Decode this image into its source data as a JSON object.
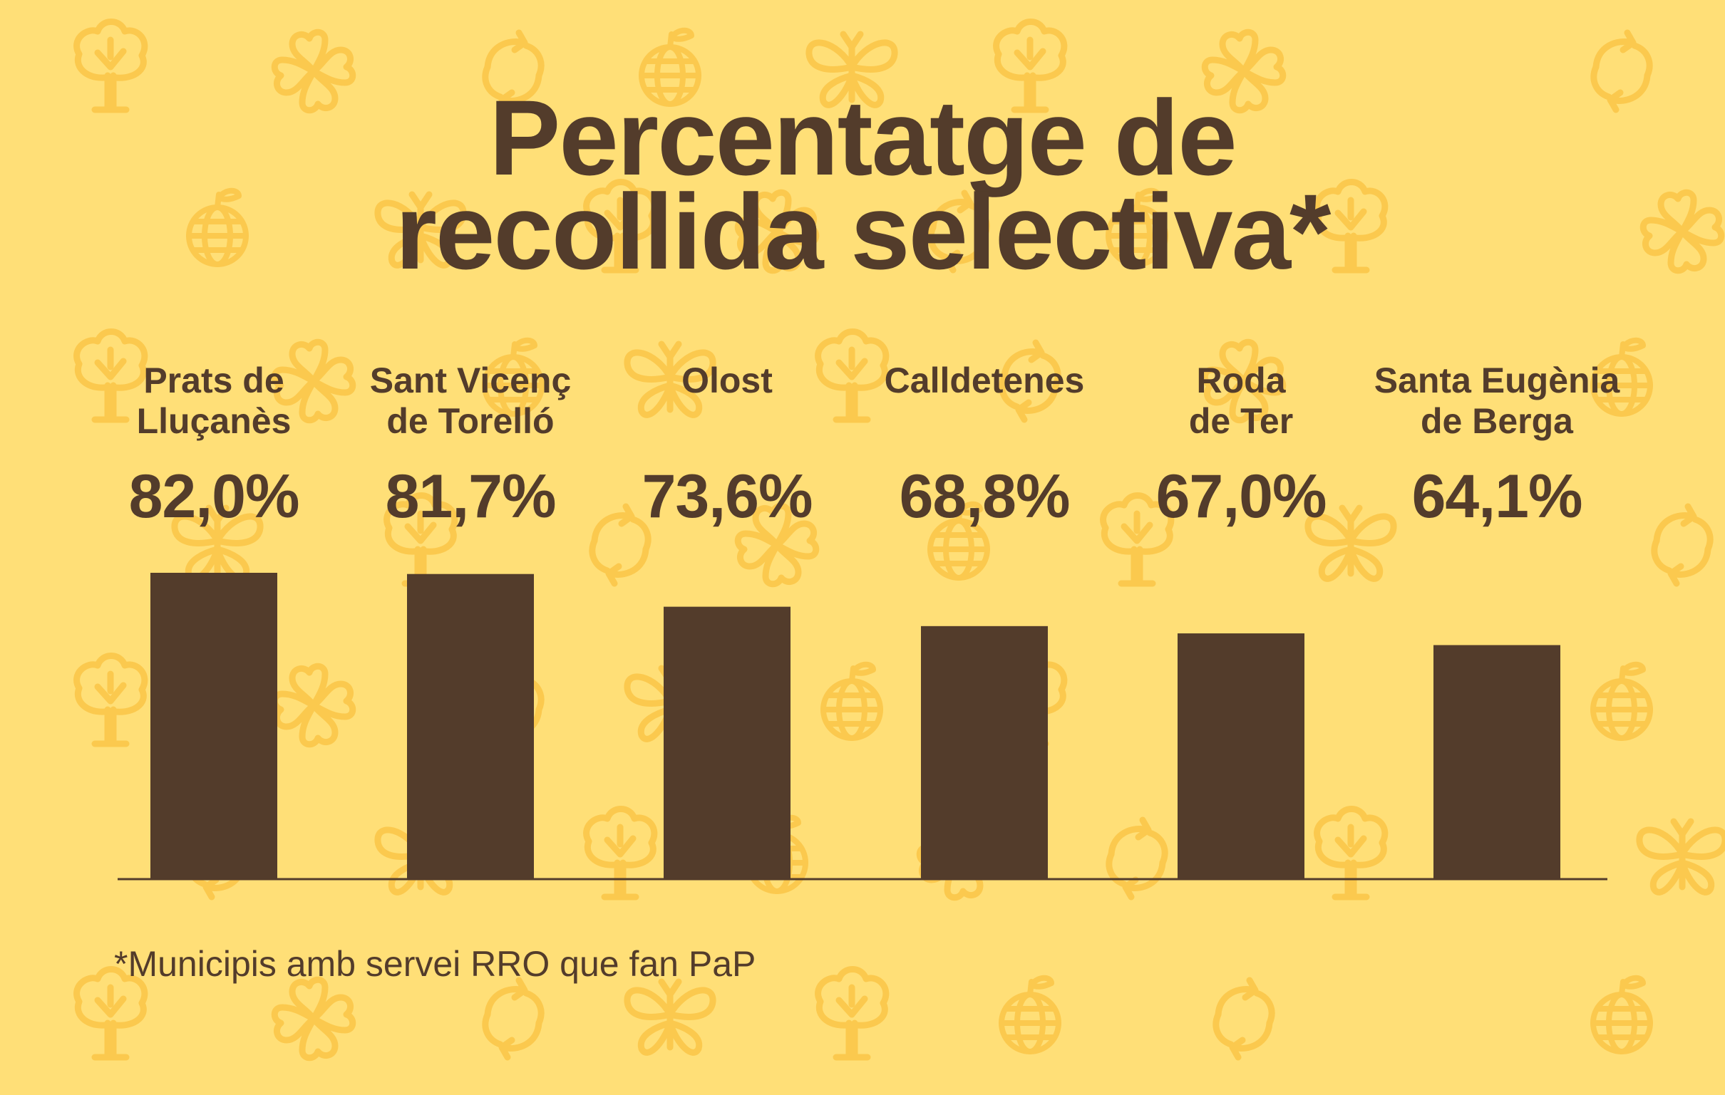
{
  "colors": {
    "background": "#ffdf77",
    "pattern": "#fbc94e",
    "ink": "#533c2b"
  },
  "header": {
    "title_line1": "Percentatge de",
    "title_line2": "recollida selectiva*"
  },
  "chart_data": {
    "type": "bar",
    "categories": [
      [
        "Prats de",
        "Lluçanès"
      ],
      [
        "Sant Vicenç",
        "de Torelló"
      ],
      [
        "Olost",
        ""
      ],
      [
        "Calldetenes",
        ""
      ],
      [
        "Roda",
        "de Ter"
      ],
      [
        "Santa Eugènia",
        "de Berga"
      ]
    ],
    "values": [
      82.0,
      81.7,
      73.6,
      68.8,
      67.0,
      64.1
    ],
    "value_labels": [
      "82,0%",
      "81,7%",
      "73,6%",
      "68,8%",
      "67,0%",
      "64,1%"
    ],
    "title": "Percentatge de recollida selectiva*",
    "xlabel": "",
    "ylabel": "",
    "grid": false,
    "legend": "none",
    "bar_color": "#533c2b"
  },
  "footnote": "*Municipis amb servei RRO que fan PaP",
  "pattern_icons": [
    "tree-icon",
    "clover-icon",
    "globe-icon",
    "butterfly-icon",
    "recycle-icon"
  ]
}
